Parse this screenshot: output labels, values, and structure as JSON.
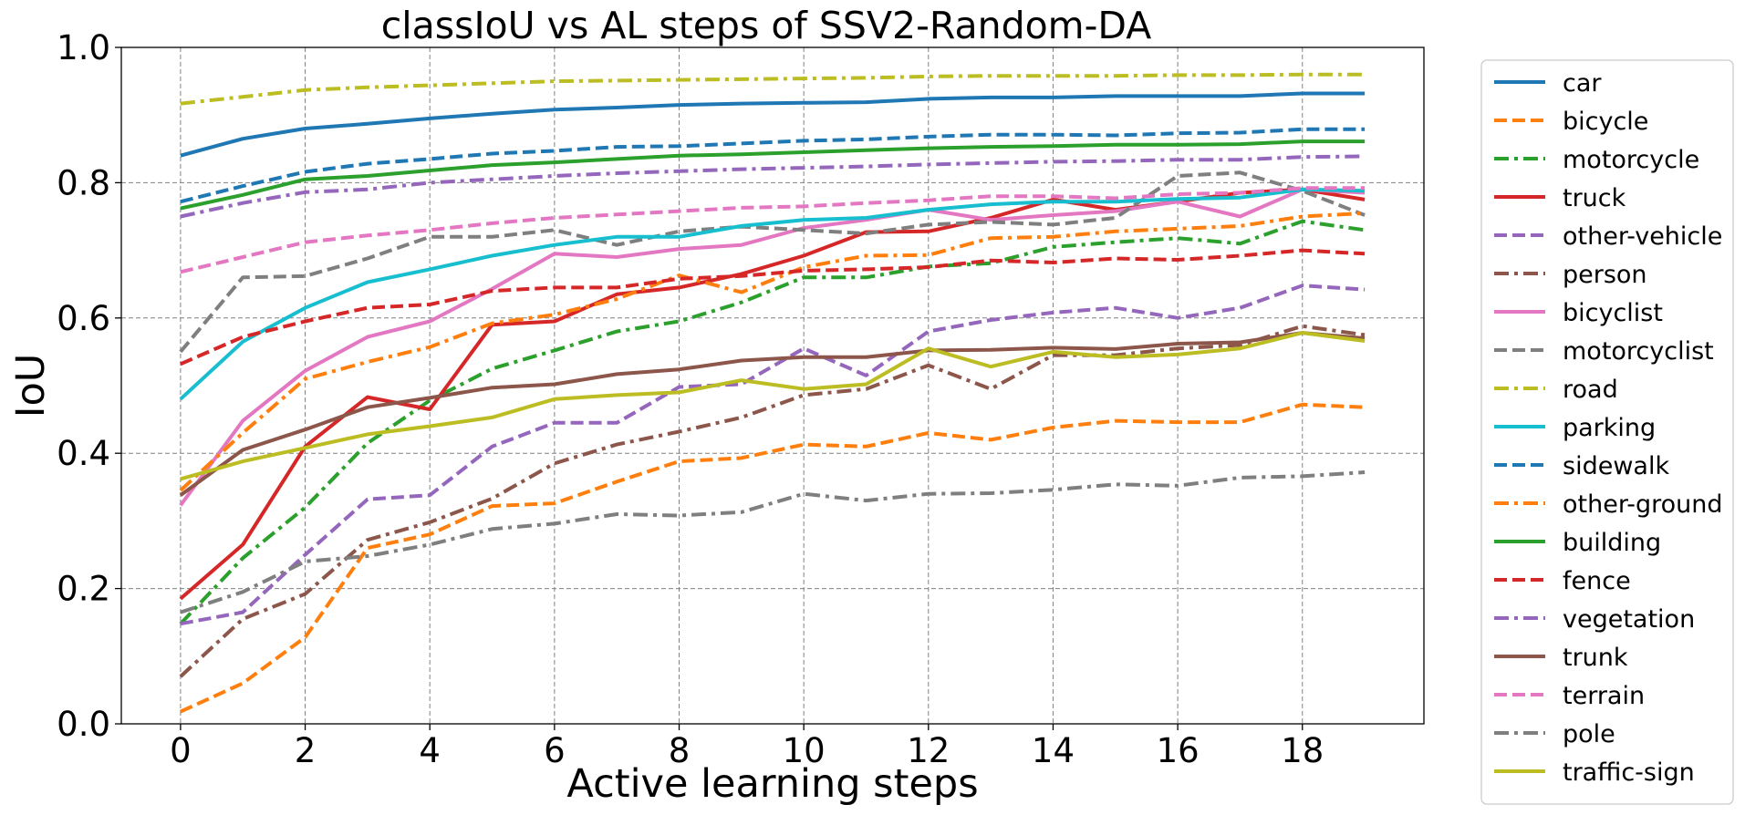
{
  "chart_data": {
    "type": "line",
    "title": "classIoU vs AL steps of SSV2-Random-DA",
    "xlabel": "Active learning steps",
    "ylabel": "IoU",
    "xlim": [
      -0.95,
      19.95
    ],
    "ylim": [
      0.0,
      1.0
    ],
    "xticks": [
      0,
      2,
      4,
      6,
      8,
      10,
      12,
      14,
      16,
      18
    ],
    "yticks": [
      0.0,
      0.2,
      0.4,
      0.6,
      0.8,
      1.0
    ],
    "xtick_labels": [
      "0",
      "2",
      "4",
      "6",
      "8",
      "10",
      "12",
      "14",
      "16",
      "18"
    ],
    "ytick_labels": [
      "0.0",
      "0.2",
      "0.4",
      "0.6",
      "0.8",
      "1.0"
    ],
    "grid": true,
    "legend_position": "outside-right",
    "x": [
      0,
      1,
      2,
      3,
      4,
      5,
      6,
      7,
      8,
      9,
      10,
      11,
      12,
      13,
      14,
      15,
      16,
      17,
      18,
      19
    ],
    "series": [
      {
        "name": "car",
        "color": "#1f77b4",
        "style": "solid",
        "values": [
          0.84,
          0.865,
          0.88,
          0.887,
          0.895,
          0.902,
          0.908,
          0.911,
          0.915,
          0.917,
          0.918,
          0.919,
          0.924,
          0.926,
          0.926,
          0.928,
          0.928,
          0.928,
          0.932,
          0.932
        ]
      },
      {
        "name": "bicycle",
        "color": "#ff7f0e",
        "style": "dashed",
        "values": [
          0.018,
          0.06,
          0.128,
          0.26,
          0.28,
          0.322,
          0.326,
          0.358,
          0.388,
          0.393,
          0.413,
          0.41,
          0.43,
          0.42,
          0.438,
          0.448,
          0.446,
          0.446,
          0.472,
          0.468
        ]
      },
      {
        "name": "motorcycle",
        "color": "#2ca02c",
        "style": "dashdot",
        "values": [
          0.148,
          0.245,
          0.32,
          0.415,
          0.478,
          0.525,
          0.552,
          0.58,
          0.595,
          0.623,
          0.66,
          0.66,
          0.676,
          0.681,
          0.705,
          0.712,
          0.718,
          0.71,
          0.743,
          0.73
        ]
      },
      {
        "name": "truck",
        "color": "#d62728",
        "style": "solid",
        "values": [
          0.185,
          0.265,
          0.41,
          0.483,
          0.465,
          0.59,
          0.595,
          0.635,
          0.645,
          0.665,
          0.692,
          0.727,
          0.728,
          0.748,
          0.775,
          0.76,
          0.772,
          0.785,
          0.79,
          0.775
        ]
      },
      {
        "name": "other-vehicle",
        "color": "#9467bd",
        "style": "dashed",
        "values": [
          0.148,
          0.165,
          0.25,
          0.332,
          0.338,
          0.41,
          0.445,
          0.445,
          0.498,
          0.502,
          0.555,
          0.515,
          0.58,
          0.597,
          0.608,
          0.615,
          0.6,
          0.615,
          0.648,
          0.642
        ]
      },
      {
        "name": "person",
        "color": "#8c564b",
        "style": "dashdot",
        "values": [
          0.07,
          0.155,
          0.192,
          0.272,
          0.298,
          0.333,
          0.385,
          0.413,
          0.432,
          0.453,
          0.486,
          0.495,
          0.53,
          0.495,
          0.545,
          0.545,
          0.555,
          0.56,
          0.588,
          0.575
        ]
      },
      {
        "name": "bicyclist",
        "color": "#e377c2",
        "style": "solid",
        "values": [
          0.323,
          0.448,
          0.522,
          0.572,
          0.595,
          0.643,
          0.695,
          0.69,
          0.702,
          0.708,
          0.733,
          0.745,
          0.76,
          0.745,
          0.752,
          0.758,
          0.772,
          0.75,
          0.79,
          0.785
        ]
      },
      {
        "name": "motorcyclist",
        "color": "#7f7f7f",
        "style": "dashed",
        "values": [
          0.55,
          0.66,
          0.662,
          0.688,
          0.72,
          0.72,
          0.73,
          0.708,
          0.728,
          0.735,
          0.73,
          0.725,
          0.738,
          0.742,
          0.738,
          0.748,
          0.81,
          0.815,
          0.788,
          0.752
        ]
      },
      {
        "name": "road",
        "color": "#bcbd22",
        "style": "dashdot",
        "values": [
          0.917,
          0.927,
          0.937,
          0.941,
          0.944,
          0.947,
          0.95,
          0.951,
          0.952,
          0.953,
          0.954,
          0.955,
          0.957,
          0.958,
          0.958,
          0.958,
          0.959,
          0.959,
          0.96,
          0.96
        ]
      },
      {
        "name": "parking",
        "color": "#17becf",
        "style": "solid",
        "values": [
          0.48,
          0.565,
          0.615,
          0.653,
          0.672,
          0.692,
          0.708,
          0.72,
          0.72,
          0.736,
          0.745,
          0.748,
          0.76,
          0.768,
          0.772,
          0.772,
          0.776,
          0.778,
          0.79,
          0.788
        ]
      },
      {
        "name": "sidewalk",
        "color": "#1f77b4",
        "style": "dashed",
        "values": [
          0.772,
          0.795,
          0.816,
          0.828,
          0.835,
          0.843,
          0.847,
          0.853,
          0.854,
          0.858,
          0.862,
          0.864,
          0.868,
          0.871,
          0.871,
          0.87,
          0.873,
          0.874,
          0.879,
          0.879
        ]
      },
      {
        "name": "other-ground",
        "color": "#ff7f0e",
        "style": "dashdot",
        "values": [
          0.345,
          0.43,
          0.51,
          0.535,
          0.557,
          0.592,
          0.605,
          0.628,
          0.663,
          0.638,
          0.675,
          0.692,
          0.693,
          0.718,
          0.72,
          0.728,
          0.732,
          0.736,
          0.75,
          0.755
        ]
      },
      {
        "name": "building",
        "color": "#2ca02c",
        "style": "solid",
        "values": [
          0.762,
          0.782,
          0.805,
          0.81,
          0.818,
          0.826,
          0.83,
          0.835,
          0.84,
          0.842,
          0.845,
          0.848,
          0.851,
          0.853,
          0.854,
          0.856,
          0.856,
          0.857,
          0.861,
          0.861
        ]
      },
      {
        "name": "fence",
        "color": "#d62728",
        "style": "dashed",
        "values": [
          0.532,
          0.572,
          0.595,
          0.615,
          0.62,
          0.64,
          0.645,
          0.645,
          0.658,
          0.662,
          0.67,
          0.672,
          0.675,
          0.685,
          0.682,
          0.688,
          0.686,
          0.692,
          0.7,
          0.695
        ]
      },
      {
        "name": "vegetation",
        "color": "#9467bd",
        "style": "dashdot",
        "values": [
          0.75,
          0.77,
          0.786,
          0.79,
          0.8,
          0.805,
          0.81,
          0.814,
          0.817,
          0.82,
          0.822,
          0.824,
          0.827,
          0.829,
          0.831,
          0.832,
          0.834,
          0.834,
          0.838,
          0.839
        ]
      },
      {
        "name": "trunk",
        "color": "#8c564b",
        "style": "solid",
        "values": [
          0.338,
          0.405,
          0.435,
          0.468,
          0.482,
          0.497,
          0.502,
          0.517,
          0.524,
          0.537,
          0.542,
          0.542,
          0.552,
          0.553,
          0.556,
          0.554,
          0.562,
          0.564,
          0.578,
          0.57
        ]
      },
      {
        "name": "terrain",
        "color": "#e377c2",
        "style": "dashed",
        "values": [
          0.668,
          0.69,
          0.712,
          0.722,
          0.73,
          0.74,
          0.748,
          0.753,
          0.758,
          0.763,
          0.765,
          0.77,
          0.774,
          0.78,
          0.78,
          0.777,
          0.783,
          0.785,
          0.792,
          0.792
        ]
      },
      {
        "name": "pole",
        "color": "#7f7f7f",
        "style": "dashdot",
        "values": [
          0.165,
          0.195,
          0.24,
          0.248,
          0.265,
          0.288,
          0.296,
          0.31,
          0.308,
          0.313,
          0.34,
          0.33,
          0.34,
          0.341,
          0.346,
          0.354,
          0.352,
          0.364,
          0.366,
          0.372
        ]
      },
      {
        "name": "traffic-sign",
        "color": "#bcbd22",
        "style": "solid",
        "values": [
          0.362,
          0.388,
          0.408,
          0.428,
          0.44,
          0.453,
          0.48,
          0.486,
          0.49,
          0.508,
          0.495,
          0.502,
          0.555,
          0.528,
          0.55,
          0.542,
          0.546,
          0.555,
          0.578,
          0.566
        ]
      }
    ]
  }
}
